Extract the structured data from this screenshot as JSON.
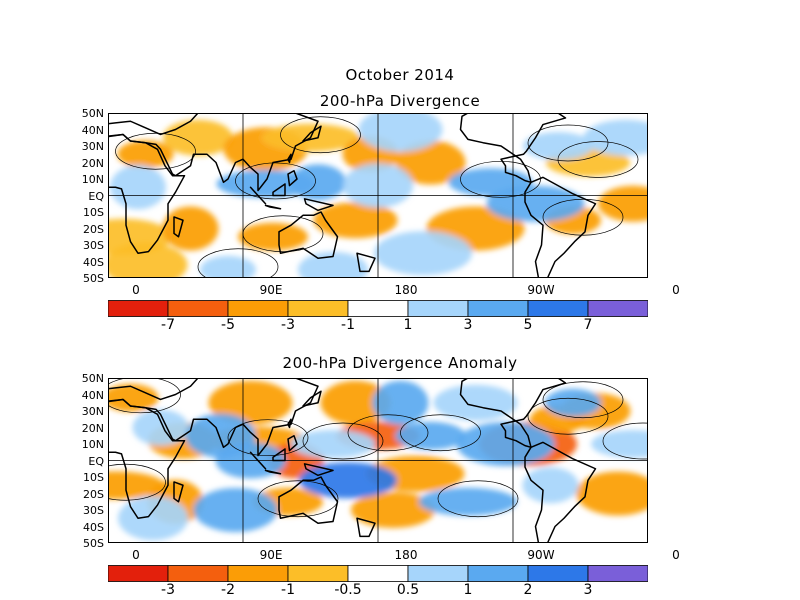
{
  "header": {
    "month": "October 2014"
  },
  "panels": [
    {
      "title": "200-hPa Divergence",
      "colorbar_labels": [
        "-7",
        "-5",
        "-3",
        "-1",
        "1",
        "3",
        "5",
        "7"
      ]
    },
    {
      "title": "200-hPa Divergence Anomaly",
      "colorbar_labels": [
        "-3",
        "-2",
        "-1",
        "-0.5",
        "0.5",
        "1",
        "2",
        "3"
      ]
    }
  ],
  "axes": {
    "lat_labels": [
      "50N",
      "40N",
      "30N",
      "20N",
      "10N",
      "EQ",
      "10S",
      "20S",
      "30S",
      "40S",
      "50S"
    ],
    "lon_labels": [
      "0",
      "90E",
      "180",
      "90W",
      "0"
    ]
  },
  "colors": {
    "scale": [
      "#e3200c",
      "#f45f0e",
      "#fb9d06",
      "#fcbe28",
      "#fcd35e",
      "#ffffff",
      "#a6d5fb",
      "#5aa9f0",
      "#2d78e8",
      "#7a5fd9"
    ]
  },
  "chart_data": [
    {
      "type": "heatmap",
      "title": "200-hPa Divergence",
      "subtitle": "October 2014",
      "xlim": [
        0,
        360
      ],
      "ylim": [
        -50,
        50
      ],
      "colorbar_levels": [
        -7,
        -5,
        -3,
        -1,
        1,
        3,
        5,
        7
      ],
      "features": [
        {
          "lon": 25,
          "lat": 25,
          "v": -3
        },
        {
          "lon": 60,
          "lat": 35,
          "v": -2
        },
        {
          "lon": 105,
          "lat": 28,
          "v": -3
        },
        {
          "lon": 135,
          "lat": 35,
          "v": -2
        },
        {
          "lon": 175,
          "lat": 25,
          "v": -3
        },
        {
          "lon": 215,
          "lat": 20,
          "v": -3
        },
        {
          "lon": 320,
          "lat": 20,
          "v": -2
        },
        {
          "lon": 10,
          "lat": -25,
          "v": -2
        },
        {
          "lon": 55,
          "lat": -20,
          "v": -3
        },
        {
          "lon": 110,
          "lat": -25,
          "v": -4
        },
        {
          "lon": 165,
          "lat": -15,
          "v": -3
        },
        {
          "lon": 245,
          "lat": -20,
          "v": -3
        },
        {
          "lon": 310,
          "lat": -15,
          "v": -3
        },
        {
          "lon": 350,
          "lat": -5,
          "v": -3
        },
        {
          "lon": 25,
          "lat": -42,
          "v": -2
        },
        {
          "lon": 105,
          "lat": 7,
          "v": 5
        },
        {
          "lon": 140,
          "lat": 8,
          "v": 4
        },
        {
          "lon": 180,
          "lat": 6,
          "v": 3
        },
        {
          "lon": 255,
          "lat": 8,
          "v": 4
        },
        {
          "lon": 285,
          "lat": -5,
          "v": 5
        },
        {
          "lon": 20,
          "lat": 5,
          "v": 3
        },
        {
          "lon": 300,
          "lat": 30,
          "v": 3
        },
        {
          "lon": 345,
          "lat": 35,
          "v": 2
        },
        {
          "lon": 210,
          "lat": -35,
          "v": 2
        },
        {
          "lon": 80,
          "lat": -45,
          "v": 2
        },
        {
          "lon": 150,
          "lat": -45,
          "v": 2
        },
        {
          "lon": 195,
          "lat": 40,
          "v": 2
        }
      ]
    },
    {
      "type": "heatmap",
      "title": "200-hPa Divergence Anomaly",
      "subtitle": "October 2014",
      "xlim": [
        0,
        360
      ],
      "ylim": [
        -50,
        50
      ],
      "colorbar_levels": [
        -3,
        -2,
        -1,
        -0.5,
        0.5,
        1,
        2,
        3
      ],
      "features": [
        {
          "lon": 15,
          "lat": 38,
          "v": -1.5
        },
        {
          "lon": 50,
          "lat": 12,
          "v": -1
        },
        {
          "lon": 95,
          "lat": 35,
          "v": -1
        },
        {
          "lon": 100,
          "lat": 12,
          "v": -1.5
        },
        {
          "lon": 125,
          "lat": 0,
          "v": -2
        },
        {
          "lon": 165,
          "lat": 35,
          "v": -1.5
        },
        {
          "lon": 180,
          "lat": 15,
          "v": -2.5
        },
        {
          "lon": 205,
          "lat": -8,
          "v": -1
        },
        {
          "lon": 45,
          "lat": -25,
          "v": -1.5
        },
        {
          "lon": 120,
          "lat": -25,
          "v": -1
        },
        {
          "lon": 190,
          "lat": -30,
          "v": -1.5
        },
        {
          "lon": 280,
          "lat": 10,
          "v": -2.5
        },
        {
          "lon": 300,
          "lat": 25,
          "v": -1
        },
        {
          "lon": 325,
          "lat": 30,
          "v": -1.5
        },
        {
          "lon": 340,
          "lat": -20,
          "v": -1
        },
        {
          "lon": 5,
          "lat": -15,
          "v": -1
        },
        {
          "lon": 35,
          "lat": 20,
          "v": 1
        },
        {
          "lon": 75,
          "lat": 15,
          "v": 1.5
        },
        {
          "lon": 150,
          "lat": 10,
          "v": 1
        },
        {
          "lon": 160,
          "lat": -12,
          "v": 3
        },
        {
          "lon": 195,
          "lat": 35,
          "v": 2
        },
        {
          "lon": 215,
          "lat": 15,
          "v": 1.5
        },
        {
          "lon": 245,
          "lat": 35,
          "v": 1
        },
        {
          "lon": 265,
          "lat": 10,
          "v": 1.5
        },
        {
          "lon": 310,
          "lat": 35,
          "v": 1.5
        },
        {
          "lon": 95,
          "lat": 0,
          "v": 2
        },
        {
          "lon": 85,
          "lat": -30,
          "v": 2
        },
        {
          "lon": 240,
          "lat": -25,
          "v": 1.5
        },
        {
          "lon": 295,
          "lat": -15,
          "v": 1
        },
        {
          "lon": 30,
          "lat": -35,
          "v": 1
        },
        {
          "lon": 350,
          "lat": 10,
          "v": 1
        }
      ]
    }
  ]
}
